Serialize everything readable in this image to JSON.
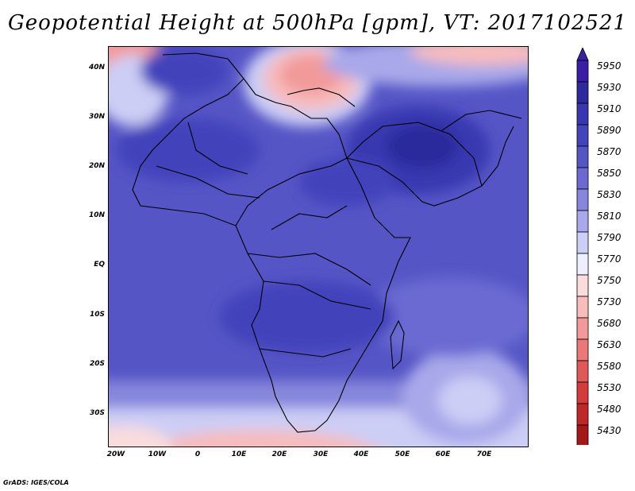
{
  "title": "Geopotential Height at 500hPa [gpm], VT: 2017102521",
  "credit": "GrADS: IGES/COLA",
  "lat_labels": [
    "40N",
    "30N",
    "20N",
    "10N",
    "EQ",
    "10S",
    "20S",
    "30S"
  ],
  "lon_labels": [
    "20W",
    "10W",
    "0",
    "10E",
    "20E",
    "30E",
    "40E",
    "50E",
    "60E",
    "70E"
  ],
  "colorbar": {
    "levels": [
      "5950",
      "5930",
      "5910",
      "5890",
      "5870",
      "5850",
      "5830",
      "5810",
      "5790",
      "5770",
      "5750",
      "5730",
      "5680",
      "5630",
      "5580",
      "5530",
      "5480",
      "5430"
    ],
    "colors": [
      "#3a1ea6",
      "#2c2a9c",
      "#3837b0",
      "#4343bb",
      "#5555c6",
      "#6a6ad2",
      "#8686dc",
      "#a8a8ea",
      "#cccef5",
      "#eeeefc",
      "#fadcdc",
      "#f7bcbc",
      "#f29a9a",
      "#ea7878",
      "#e05858",
      "#d43c3c",
      "#c02828",
      "#a41818"
    ]
  },
  "map": {
    "background_color": "#5555c6",
    "icon": "africa-geopotential-map"
  }
}
